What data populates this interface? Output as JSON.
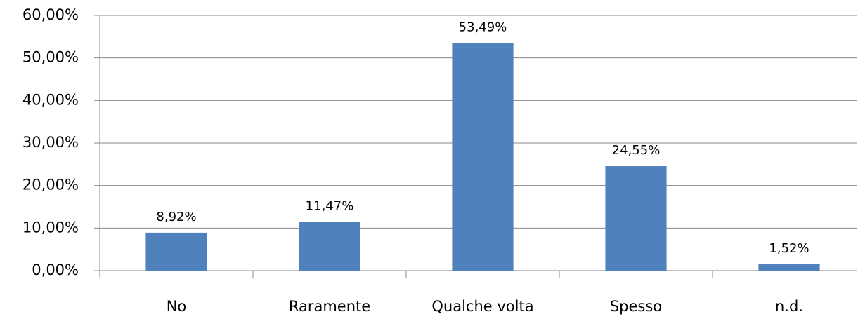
{
  "chart_data": {
    "type": "bar",
    "categories": [
      "No",
      "Raramente",
      "Qualche volta",
      "Spesso",
      "n.d."
    ],
    "values": [
      8.92,
      11.47,
      53.49,
      24.55,
      1.52
    ],
    "value_labels": [
      "8,92%",
      "11,47%",
      "53,49%",
      "24,55%",
      "1,52%"
    ],
    "color": "#4f81bd",
    "ylim": [
      0,
      60
    ],
    "yticks": [
      {
        "value": 0,
        "label": "0,00%"
      },
      {
        "value": 10,
        "label": "10,00%"
      },
      {
        "value": 20,
        "label": "20,00%"
      },
      {
        "value": 30,
        "label": "30,00%"
      },
      {
        "value": 40,
        "label": "40,00%"
      },
      {
        "value": 50,
        "label": "50,00%"
      },
      {
        "value": 60,
        "label": "60,00%"
      }
    ],
    "grid": true
  }
}
